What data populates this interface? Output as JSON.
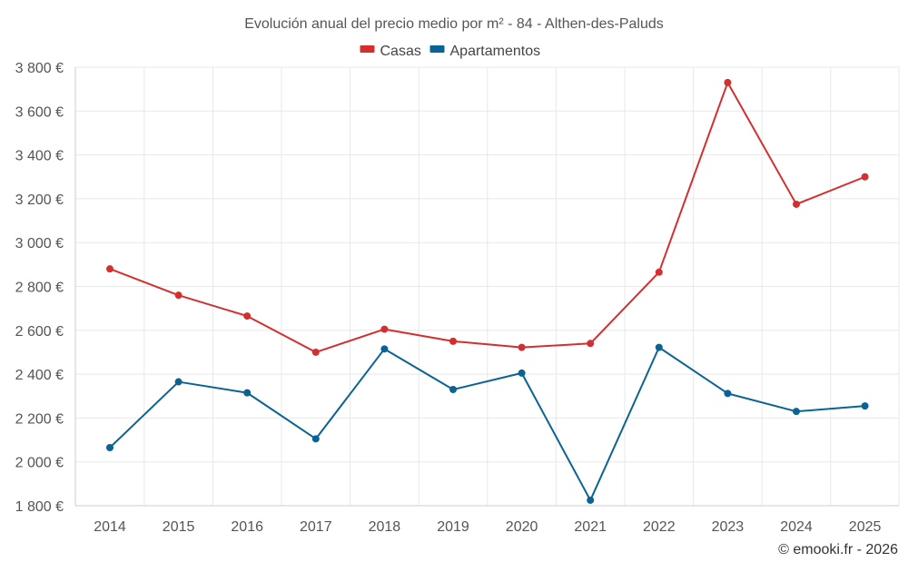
{
  "chart_data": {
    "type": "line",
    "title": "Evolución anual del precio medio por m² - 84 - Althen-des-Paluds",
    "categories": [
      "2014",
      "2015",
      "2016",
      "2017",
      "2018",
      "2019",
      "2020",
      "2021",
      "2022",
      "2023",
      "2024",
      "2025"
    ],
    "series": [
      {
        "name": "Casas",
        "color": "#d32f2f",
        "values": [
          2880,
          2760,
          2665,
          2500,
          2605,
          2550,
          2522,
          2540,
          2865,
          3730,
          3175,
          3300
        ]
      },
      {
        "name": "Apartamentos",
        "color": "#0a6394",
        "values": [
          2065,
          2365,
          2315,
          2105,
          2515,
          2330,
          2405,
          1825,
          2522,
          2312,
          2230,
          2255
        ]
      }
    ],
    "ylim": [
      1800,
      3800
    ],
    "yticks": [
      1800,
      2000,
      2200,
      2400,
      2600,
      2800,
      3000,
      3200,
      3400,
      3600,
      3800
    ],
    "ytick_labels": [
      "1 800 €",
      "2 000 €",
      "2 200 €",
      "2 400 €",
      "2 600 €",
      "2 800 €",
      "3 000 €",
      "3 200 €",
      "3 400 €",
      "3 600 €",
      "3 800 €"
    ],
    "xlabel": "",
    "ylabel": "",
    "grid": true,
    "legend_position": "top-center"
  },
  "credit": "© emooki.fr - 2026"
}
